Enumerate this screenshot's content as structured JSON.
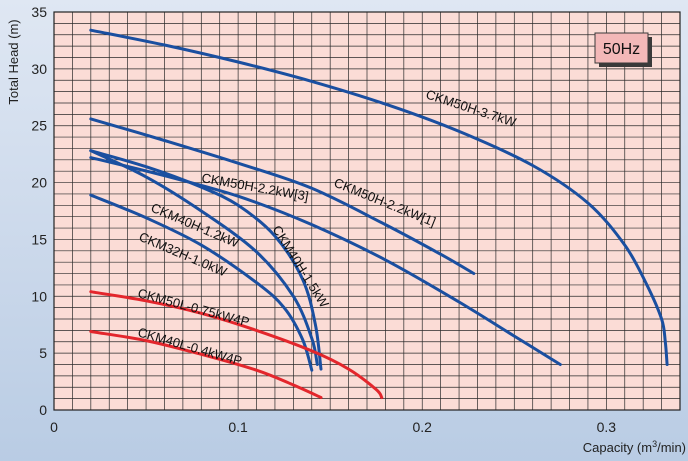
{
  "chart_data": {
    "type": "line",
    "title": "",
    "xlabel": "Capacity (m",
    "xlabel_sup": "3",
    "xlabel_tail": "/min)",
    "ylabel": "Total Head (m)",
    "badge": "50Hz",
    "xlim": [
      0,
      0.34
    ],
    "ylim": [
      0,
      35
    ],
    "x_ticks": [
      0,
      0.1,
      0.2,
      0.3
    ],
    "x_tick_labels": [
      "0",
      "0.1",
      "0.2",
      "0.3"
    ],
    "y_ticks": [
      0,
      5,
      10,
      15,
      20,
      25,
      30,
      35
    ],
    "y_tick_labels": [
      "0",
      "5",
      "10",
      "15",
      "20",
      "25",
      "30",
      "35"
    ],
    "grid": true,
    "colors": {
      "plot_bg": "#fbdcd6",
      "grid": "#2a2a2a",
      "blue": "#1a4fa0",
      "red": "#e3262c",
      "badge_bg": "#f3b8b8"
    },
    "series": [
      {
        "name": "CKM50H-3.7kW",
        "color": "#1a4fa0",
        "x": [
          0.02,
          0.06,
          0.1,
          0.14,
          0.18,
          0.22,
          0.26,
          0.29,
          0.31,
          0.322,
          0.33,
          0.332,
          0.333
        ],
        "y": [
          33.4,
          32.1,
          30.6,
          28.9,
          26.9,
          24.5,
          21.5,
          18.2,
          14.5,
          11.0,
          8.0,
          6.0,
          4.0
        ]
      },
      {
        "name": "CKM50H-2.2kW[3]",
        "color": "#1a4fa0",
        "x": [
          0.02,
          0.06,
          0.1,
          0.14,
          0.18,
          0.22,
          0.25,
          0.275
        ],
        "y": [
          22.2,
          20.6,
          18.8,
          16.3,
          13.2,
          9.5,
          6.5,
          4.0
        ]
      },
      {
        "name": "CKM50H-2.2kW[1]",
        "color": "#1a4fa0",
        "x": [
          0.02,
          0.06,
          0.1,
          0.14,
          0.18,
          0.21,
          0.228
        ],
        "y": [
          25.6,
          23.7,
          21.7,
          19.5,
          16.3,
          13.7,
          12.0
        ]
      },
      {
        "name": "CKM40H-1.2kW",
        "color": "#1a4fa0",
        "x": [
          0.02,
          0.05,
          0.08,
          0.11,
          0.13,
          0.14,
          0.143
        ],
        "y": [
          22.8,
          20.5,
          17.5,
          13.9,
          10.0,
          6.3,
          4.0
        ]
      },
      {
        "name": "CKM40H-1.5kW",
        "color": "#1a4fa0",
        "x": [
          0.02,
          0.05,
          0.08,
          0.1,
          0.12,
          0.135,
          0.142,
          0.145
        ],
        "y": [
          22.8,
          21.4,
          19.6,
          18.0,
          15.3,
          11.5,
          7.5,
          3.6
        ]
      },
      {
        "name": "CKM32H-1.0kW",
        "color": "#1a4fa0",
        "x": [
          0.02,
          0.05,
          0.08,
          0.11,
          0.125,
          0.135,
          0.14
        ],
        "y": [
          18.9,
          16.9,
          14.5,
          11.2,
          9.0,
          6.2,
          3.5
        ]
      },
      {
        "name": "CKM50L-0.75kW4P",
        "color": "#e3262c",
        "x": [
          0.02,
          0.05,
          0.08,
          0.11,
          0.14,
          0.16,
          0.175,
          0.178
        ],
        "y": [
          10.4,
          9.6,
          8.5,
          7.0,
          5.2,
          3.6,
          1.8,
          1.1
        ]
      },
      {
        "name": "CKM40L-0.4kW4P",
        "color": "#e3262c",
        "x": [
          0.02,
          0.05,
          0.08,
          0.11,
          0.13,
          0.145
        ],
        "y": [
          6.9,
          6.1,
          4.9,
          3.5,
          2.2,
          1.1
        ]
      }
    ],
    "curve_labels": [
      {
        "text": "CKM50H-3.7kW",
        "series": 0
      },
      {
        "text": "CKM50H-2.2kW[3]",
        "series": 1
      },
      {
        "text": "CKM50H-2.2kW[1]",
        "series": 2
      },
      {
        "text": "CKM40H-1.2kW",
        "series": 3
      },
      {
        "text": "CKM40H-1.5kW",
        "series": 4
      },
      {
        "text": "CKM32H-1.0kW",
        "series": 5
      },
      {
        "text": "CKM50L-0.75kW4P",
        "series": 6
      },
      {
        "text": "CKM40L-0.4kW4P",
        "series": 7
      }
    ]
  }
}
